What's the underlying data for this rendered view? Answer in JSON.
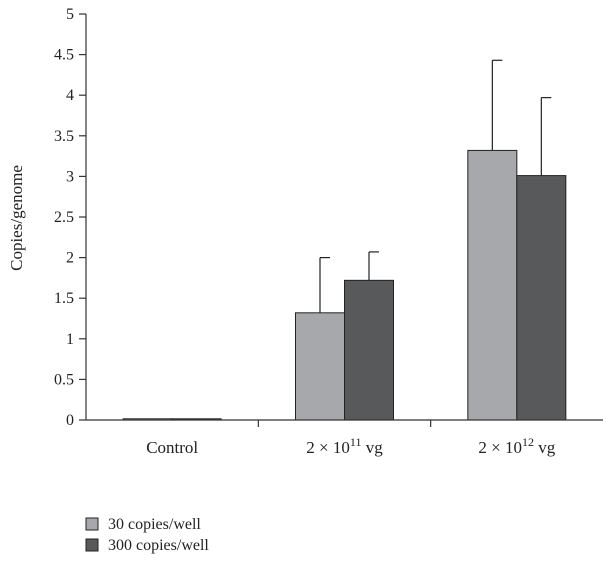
{
  "chart_data": {
    "type": "bar",
    "title": "",
    "xlabel": "",
    "ylabel": "Copies/genome",
    "ylim": [
      0,
      5
    ],
    "yticks": [
      "0",
      "0.5",
      "1",
      "1.5",
      "2",
      "2.5",
      "3",
      "3.5",
      "4",
      "4.5",
      "5"
    ],
    "grid": false,
    "legend_position": "bottom-left",
    "categories": [
      {
        "base": "Control",
        "exp": "",
        "suffix": ""
      },
      {
        "base": "2 × 10",
        "exp": "11",
        "suffix": " vg"
      },
      {
        "base": "2 × 10",
        "exp": "12",
        "suffix": " vg"
      }
    ],
    "series": [
      {
        "name": "30 copies/well",
        "color": "#a7a8ac",
        "values": [
          0.01,
          1.32,
          3.32
        ],
        "error": [
          0,
          0.68,
          1.11
        ]
      },
      {
        "name": "300 copies/well",
        "color": "#58595b",
        "values": [
          0.01,
          1.72,
          3.01
        ],
        "error": [
          0,
          0.35,
          0.96
        ]
      }
    ]
  }
}
